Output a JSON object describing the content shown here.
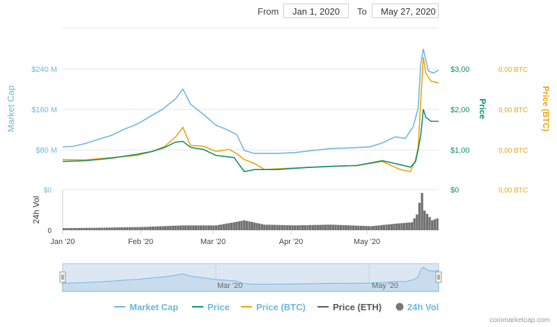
{
  "range": {
    "from_label": "From",
    "from_value": "Jan 1, 2020",
    "to_label": "To",
    "to_value": "May 27, 2020"
  },
  "credit": "coinmarketcap.com",
  "colors": {
    "market_cap": "#6cb8df",
    "price": "#0e8f6a",
    "price_btc": "#f0a30a",
    "price_eth": "#555555",
    "volume": "#707070"
  },
  "chart_data": {
    "type": "line",
    "x_axis": {
      "start": "2020-01-01",
      "end": "2020-05-27",
      "tick_labels": [
        "Jan '20",
        "Feb '20",
        "Mar '20",
        "Apr '20",
        "May '20"
      ],
      "tick_dates": [
        "2020-01-01",
        "2020-02-01",
        "2020-03-01",
        "2020-04-01",
        "2020-05-01"
      ]
    },
    "navigator_labels": [
      "Mar '20",
      "May '20"
    ],
    "axes": {
      "market_cap": {
        "title": "Market Cap",
        "ticks": [
          "$80 M",
          "$160 M",
          "$240 M"
        ],
        "tick_values": [
          80,
          160,
          240
        ],
        "unit": "$M"
      },
      "price": {
        "title": "Price",
        "ticks": [
          "$0",
          "$1,00",
          "$2,00",
          "$3,00"
        ],
        "tick_values": [
          0,
          1,
          2,
          3
        ],
        "unit": "$"
      },
      "price_btc": {
        "title": "Price (BTC)",
        "ticks": [
          "0,00 BTC",
          "0,00 BTC",
          "0,00 BTC",
          "0,00 BTC"
        ]
      },
      "volume": {
        "title": "24h Vol",
        "ticks": [
          "$0",
          "0"
        ]
      }
    },
    "series": [
      {
        "name": "Market Cap",
        "unit": "$M",
        "points": [
          [
            "2020-01-01",
            85
          ],
          [
            "2020-01-05",
            86
          ],
          [
            "2020-01-10",
            92
          ],
          [
            "2020-01-15",
            100
          ],
          [
            "2020-01-20",
            108
          ],
          [
            "2020-01-25",
            120
          ],
          [
            "2020-01-30",
            130
          ],
          [
            "2020-02-04",
            145
          ],
          [
            "2020-02-09",
            160
          ],
          [
            "2020-02-14",
            180
          ],
          [
            "2020-02-17",
            200
          ],
          [
            "2020-02-20",
            170
          ],
          [
            "2020-02-25",
            150
          ],
          [
            "2020-03-01",
            128
          ],
          [
            "2020-03-05",
            120
          ],
          [
            "2020-03-09",
            110
          ],
          [
            "2020-03-12",
            78
          ],
          [
            "2020-03-16",
            72
          ],
          [
            "2020-03-25",
            72
          ],
          [
            "2020-04-01",
            74
          ],
          [
            "2020-04-08",
            78
          ],
          [
            "2020-04-15",
            82
          ],
          [
            "2020-04-22",
            83
          ],
          [
            "2020-04-30",
            85
          ],
          [
            "2020-05-05",
            93
          ],
          [
            "2020-05-10",
            105
          ],
          [
            "2020-05-14",
            102
          ],
          [
            "2020-05-17",
            125
          ],
          [
            "2020-05-19",
            162
          ],
          [
            "2020-05-20",
            250
          ],
          [
            "2020-05-21",
            280
          ],
          [
            "2020-05-22",
            258
          ],
          [
            "2020-05-23",
            236
          ],
          [
            "2020-05-25",
            232
          ],
          [
            "2020-05-27",
            238
          ]
        ]
      },
      {
        "name": "Price",
        "unit": "$",
        "points": [
          [
            "2020-01-01",
            0.7
          ],
          [
            "2020-01-10",
            0.72
          ],
          [
            "2020-01-20",
            0.78
          ],
          [
            "2020-01-30",
            0.88
          ],
          [
            "2020-02-05",
            0.95
          ],
          [
            "2020-02-10",
            1.05
          ],
          [
            "2020-02-14",
            1.18
          ],
          [
            "2020-02-17",
            1.2
          ],
          [
            "2020-02-20",
            1.05
          ],
          [
            "2020-02-25",
            1.0
          ],
          [
            "2020-03-01",
            0.85
          ],
          [
            "2020-03-08",
            0.8
          ],
          [
            "2020-03-12",
            0.45
          ],
          [
            "2020-03-16",
            0.5
          ],
          [
            "2020-03-25",
            0.5
          ],
          [
            "2020-04-05",
            0.55
          ],
          [
            "2020-04-15",
            0.58
          ],
          [
            "2020-04-25",
            0.6
          ],
          [
            "2020-05-05",
            0.72
          ],
          [
            "2020-05-12",
            0.62
          ],
          [
            "2020-05-16",
            0.56
          ],
          [
            "2020-05-18",
            0.7
          ],
          [
            "2020-05-19",
            1.0
          ],
          [
            "2020-05-20",
            1.35
          ],
          [
            "2020-05-21",
            2.0
          ],
          [
            "2020-05-22",
            1.8
          ],
          [
            "2020-05-24",
            1.7
          ],
          [
            "2020-05-27",
            1.7
          ]
        ]
      },
      {
        "name": "Price (BTC)",
        "unit": "relative",
        "points": [
          [
            "2020-01-01",
            0.75
          ],
          [
            "2020-01-10",
            0.74
          ],
          [
            "2020-01-20",
            0.8
          ],
          [
            "2020-01-30",
            0.85
          ],
          [
            "2020-02-05",
            0.95
          ],
          [
            "2020-02-10",
            1.08
          ],
          [
            "2020-02-14",
            1.3
          ],
          [
            "2020-02-17",
            1.55
          ],
          [
            "2020-02-20",
            1.1
          ],
          [
            "2020-02-25",
            1.08
          ],
          [
            "2020-03-01",
            0.95
          ],
          [
            "2020-03-06",
            1.0
          ],
          [
            "2020-03-09",
            0.9
          ],
          [
            "2020-03-12",
            0.75
          ],
          [
            "2020-03-16",
            0.65
          ],
          [
            "2020-03-20",
            0.5
          ],
          [
            "2020-03-25",
            0.52
          ],
          [
            "2020-04-05",
            0.55
          ],
          [
            "2020-04-15",
            0.58
          ],
          [
            "2020-04-25",
            0.6
          ],
          [
            "2020-05-05",
            0.7
          ],
          [
            "2020-05-12",
            0.5
          ],
          [
            "2020-05-16",
            0.45
          ],
          [
            "2020-05-18",
            0.75
          ],
          [
            "2020-05-19",
            1.05
          ],
          [
            "2020-05-20",
            2.2
          ],
          [
            "2020-05-21",
            3.3
          ],
          [
            "2020-05-22",
            2.9
          ],
          [
            "2020-05-24",
            2.7
          ],
          [
            "2020-05-27",
            2.65
          ]
        ]
      },
      {
        "name": "Price (ETH)",
        "points": []
      },
      {
        "name": "24h Vol",
        "unit": "relative",
        "points": [
          [
            "2020-01-01",
            0.05
          ],
          [
            "2020-01-15",
            0.06
          ],
          [
            "2020-02-01",
            0.08
          ],
          [
            "2020-02-17",
            0.12
          ],
          [
            "2020-03-01",
            0.12
          ],
          [
            "2020-03-08",
            0.2
          ],
          [
            "2020-03-12",
            0.25
          ],
          [
            "2020-03-20",
            0.14
          ],
          [
            "2020-04-01",
            0.12
          ],
          [
            "2020-04-15",
            0.14
          ],
          [
            "2020-05-01",
            0.1
          ],
          [
            "2020-05-10",
            0.16
          ],
          [
            "2020-05-17",
            0.2
          ],
          [
            "2020-05-19",
            0.4
          ],
          [
            "2020-05-20",
            0.7
          ],
          [
            "2020-05-21",
            0.95
          ],
          [
            "2020-05-22",
            0.5
          ],
          [
            "2020-05-25",
            0.25
          ],
          [
            "2020-05-27",
            0.3
          ]
        ]
      }
    ],
    "legend": {
      "position": "bottom",
      "items": [
        "Market Cap",
        "Price",
        "Price (BTC)",
        "Price (ETH)",
        "24h Vol"
      ]
    },
    "grid": true
  }
}
